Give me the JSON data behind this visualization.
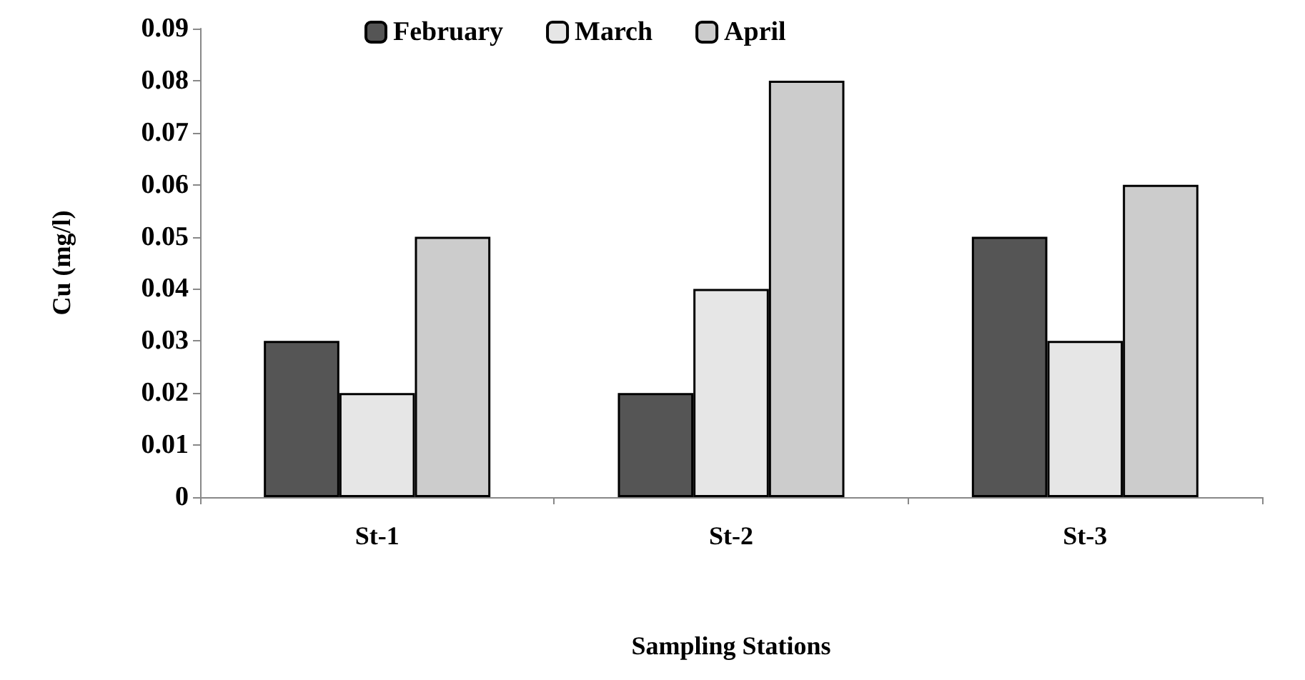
{
  "chart_data": {
    "type": "bar",
    "xlabel": "Sampling Stations",
    "ylabel": "Cu (mg/l)",
    "categories": [
      "St-1",
      "St-2",
      "St-3"
    ],
    "series": [
      {
        "name": "February",
        "color": "#555555",
        "values": [
          0.03,
          0.02,
          0.05
        ]
      },
      {
        "name": "March",
        "color": "#e6e6e6",
        "values": [
          0.02,
          0.04,
          0.03
        ]
      },
      {
        "name": "April",
        "color": "#cccccc",
        "values": [
          0.05,
          0.08,
          0.06
        ]
      }
    ],
    "ylim": [
      0,
      0.09
    ],
    "yticks": [
      0,
      0.01,
      0.02,
      0.03,
      0.04,
      0.05,
      0.06,
      0.07,
      0.08,
      0.09
    ],
    "grid": false,
    "legend": "top"
  }
}
